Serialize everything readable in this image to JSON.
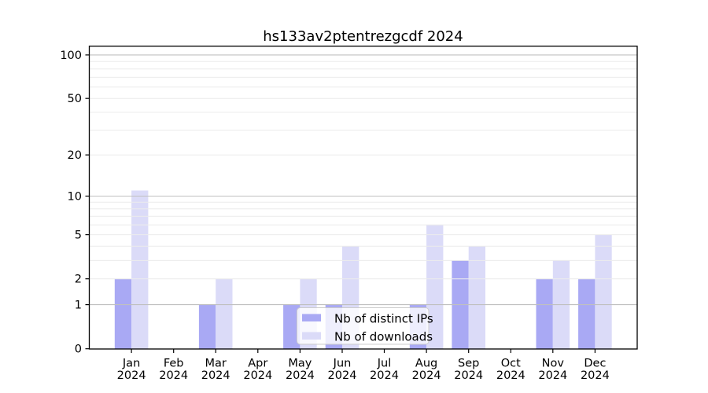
{
  "title": "hs133av2ptentrezgcdf 2024",
  "legend": {
    "items": [
      {
        "label": "Nb of distinct IPs",
        "color": "#a9a9f4"
      },
      {
        "label": "Nb of downloads",
        "color": "#dbdbf8"
      }
    ]
  },
  "colors": {
    "distinct_ips": "#a9a9f4",
    "downloads": "#dbdbf8",
    "grid_major": "#c0c0c0",
    "grid_minor": "#ececec",
    "axis": "#000000",
    "legend_border": "#cccccc",
    "legend_bg_rgba": "rgba(255,255,255,0.8)"
  },
  "chart_data": {
    "type": "bar",
    "title": "hs133av2ptentrezgcdf 2024",
    "categories": [
      "Jan",
      "Feb",
      "Mar",
      "Apr",
      "May",
      "Jun",
      "Jul",
      "Aug",
      "Sep",
      "Oct",
      "Nov",
      "Dec"
    ],
    "category_year": "2024",
    "series": [
      {
        "name": "Nb of distinct IPs",
        "color": "#a9a9f4",
        "values": [
          2,
          0,
          1,
          0,
          1,
          1,
          0,
          1,
          3,
          0,
          2,
          2
        ]
      },
      {
        "name": "Nb of downloads",
        "color": "#dbdbf8",
        "values": [
          11,
          0,
          2,
          0,
          2,
          4,
          0,
          6,
          4,
          0,
          3,
          5
        ]
      }
    ],
    "xlabel": "",
    "ylabel": "",
    "yscale": "log1p",
    "ylim": [
      0,
      115
    ],
    "yticks": [
      0,
      1,
      2,
      5,
      10,
      20,
      50,
      100
    ],
    "ytick_labels": [
      "0",
      "1",
      "2",
      "5",
      "10",
      "20",
      "50",
      "100"
    ],
    "gridlines_major": [
      1,
      10,
      100
    ],
    "gridlines_minor": [
      2,
      3,
      4,
      5,
      6,
      7,
      8,
      9,
      20,
      30,
      40,
      50,
      60,
      70,
      80,
      90
    ],
    "grid": true,
    "legend_position": "lower center"
  }
}
